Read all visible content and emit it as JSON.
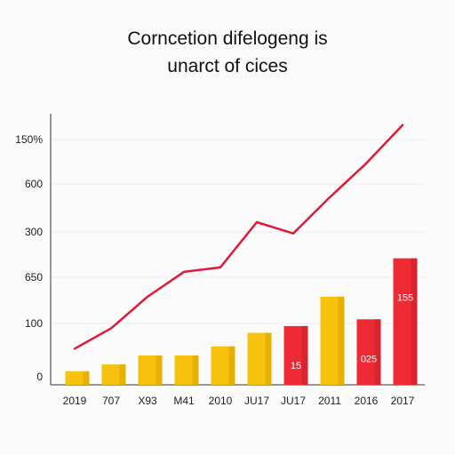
{
  "chart_data": {
    "type": "bar",
    "title_lines": [
      "Corncetion difelogeng is",
      "unarct of cices"
    ],
    "categories": [
      "2019",
      "707",
      "X93",
      "M41",
      "2010",
      "JU17",
      "JU17",
      "2011",
      "2016",
      "2017"
    ],
    "y_tick_labels": [
      "0",
      "100",
      "650",
      "300",
      "600",
      "150%"
    ],
    "series": [
      {
        "type": "bar",
        "values": [
          6,
          9,
          13,
          13,
          17,
          23,
          26,
          39,
          29,
          56
        ],
        "bar_colors": [
          "#f7c20c",
          "#f7c20c",
          "#f7c20c",
          "#f7c20c",
          "#f7c20c",
          "#f7c20c",
          "#ee2a35",
          "#f7c20c",
          "#ee2a35",
          "#ee2a35"
        ],
        "data_labels": [
          "",
          "",
          "",
          "",
          "",
          "",
          "15",
          "",
          "025",
          "155"
        ]
      },
      {
        "type": "line",
        "values": [
          16,
          25,
          39,
          50,
          52,
          72,
          67,
          83,
          98,
          115
        ],
        "color": "#e0193a"
      }
    ],
    "ylim": [
      0,
      120
    ],
    "grid": true,
    "legend": "none"
  }
}
